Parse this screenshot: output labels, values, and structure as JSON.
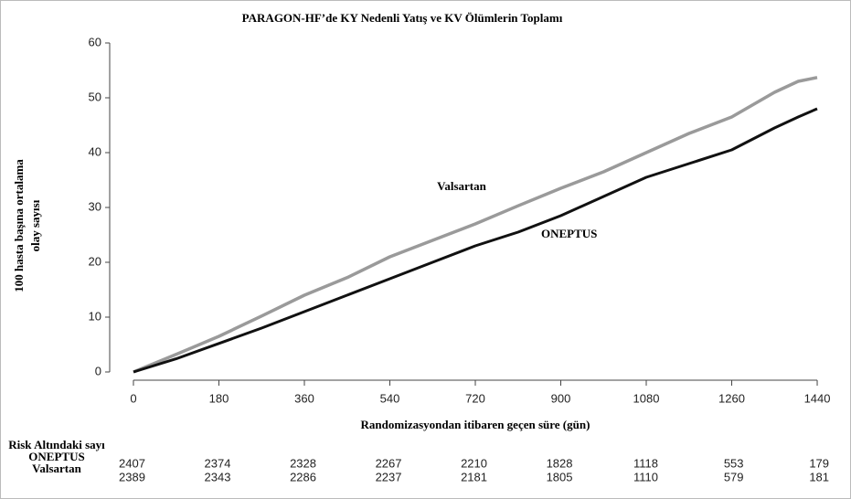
{
  "chart_data": {
    "type": "line",
    "title": "PARAGON-HF’de KY Nedenli Yatış ve KV Ölümlerin Toplamı",
    "y_label": [
      "100 hasta başına ortalama",
      "olay sayısı"
    ],
    "x_label": "Randomizasyondan itibaren geçen süre (gün)",
    "x": [
      0,
      90,
      180,
      270,
      360,
      450,
      540,
      630,
      720,
      810,
      900,
      990,
      1080,
      1170,
      1260,
      1350,
      1400,
      1440
    ],
    "series": [
      {
        "name": "Valsartan",
        "color": "#9a9a9a",
        "values": [
          0,
          3.2,
          6.5,
          10.2,
          14,
          17.2,
          21,
          24,
          27,
          30.3,
          33.5,
          36.5,
          40,
          43.5,
          46.5,
          51,
          53,
          53.7
        ]
      },
      {
        "name": "ONEPTUS",
        "color": "#111111",
        "values": [
          0,
          2.4,
          5.2,
          8,
          11,
          14,
          17,
          20,
          23,
          25.5,
          28.5,
          32,
          35.5,
          38,
          40.5,
          44.5,
          46.5,
          48
        ]
      }
    ],
    "xlim": [
      -50,
      1490
    ],
    "ylim": [
      -1.5,
      61.5
    ],
    "xticks": [
      0,
      180,
      360,
      540,
      720,
      900,
      1080,
      1260,
      1440
    ],
    "yticks": [
      0,
      10,
      20,
      30,
      40,
      50,
      60
    ],
    "risk_table": {
      "title": "Risk Altındaki sayı",
      "rows": [
        {
          "name": "ONEPTUS",
          "values": [
            2407,
            2374,
            2328,
            2267,
            2210,
            1828,
            1118,
            553,
            179
          ]
        },
        {
          "name": "Valsartan",
          "values": [
            2389,
            2343,
            2286,
            2237,
            2181,
            1805,
            1110,
            579,
            181
          ]
        }
      ]
    }
  }
}
